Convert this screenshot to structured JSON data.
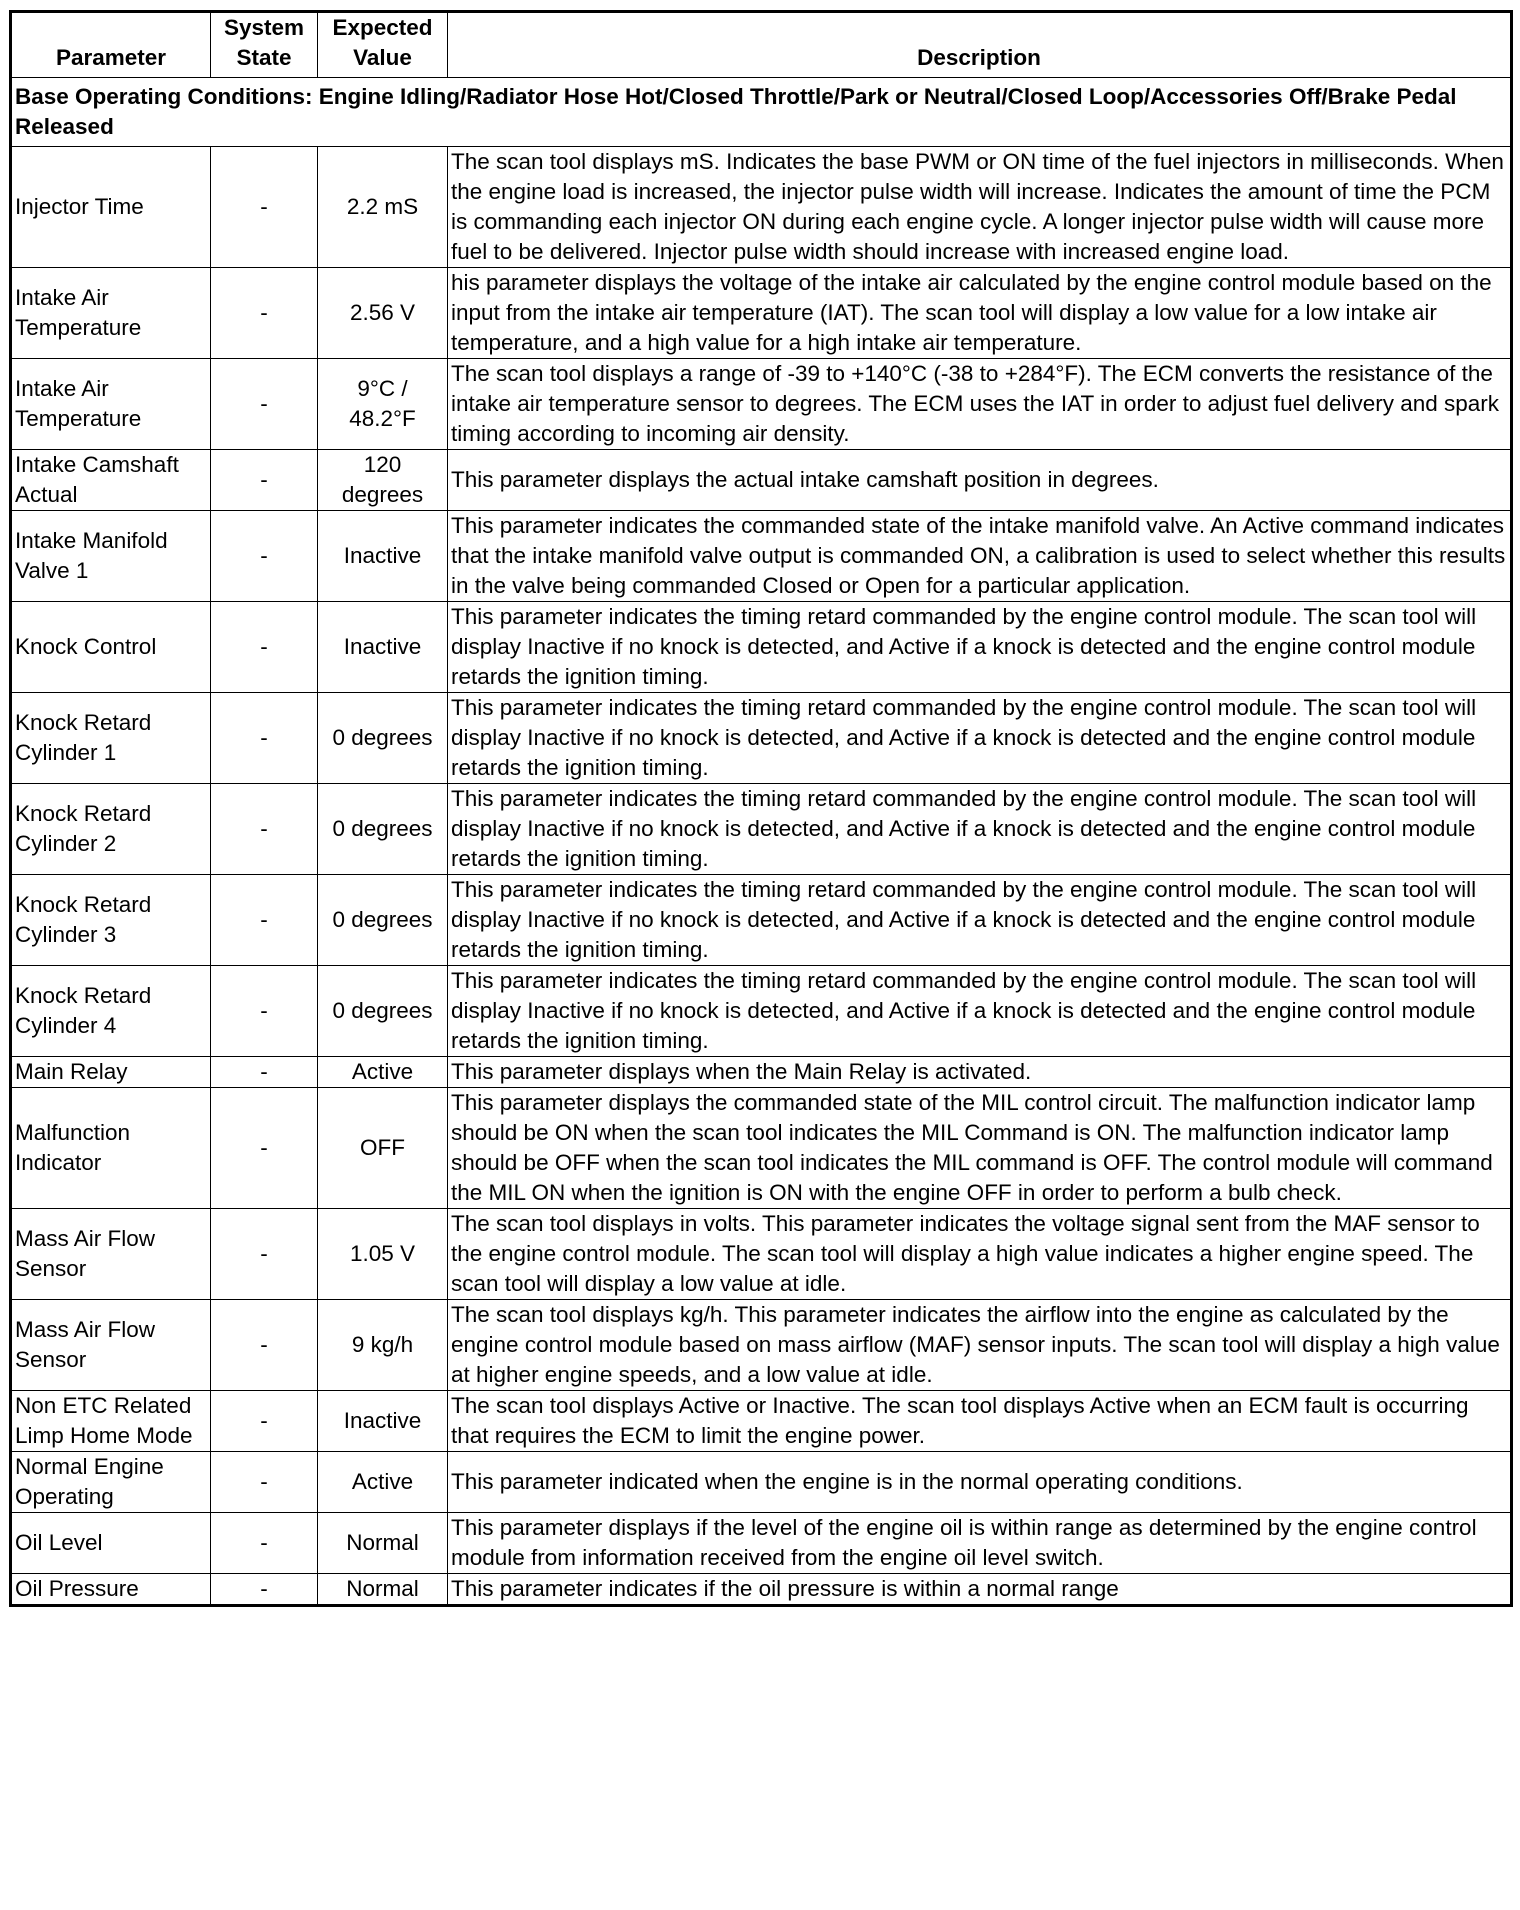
{
  "headers": {
    "parameter": "Parameter",
    "state": "System State",
    "value": "Expected Value",
    "description": "Description"
  },
  "conditions": "Base Operating Conditions: Engine Idling/Radiator Hose Hot/Closed Throttle/Park or Neutral/Closed Loop/Accessories Off/Brake Pedal Released",
  "rows": [
    {
      "parameter": "Injector Time",
      "state": "-",
      "value": "2.2 mS",
      "description": "The scan tool displays mS. Indicates the base PWM or ON time of the fuel injectors in milliseconds. When the engine load is increased, the injector pulse width will increase. Indicates the amount of time the PCM is commanding each injector ON during each engine cycle. A longer injector pulse width will cause more fuel to be delivered. Injector pulse width should increase with increased engine load."
    },
    {
      "parameter": "Intake Air Temperature",
      "state": "-",
      "value": "2.56 V",
      "description": "his parameter displays the voltage of the intake air calculated by the engine control module based on the input from the intake air temperature (IAT). The scan tool will display a low value for a low intake air temperature, and a high value for a high intake air temperature."
    },
    {
      "parameter": "Intake Air Temperature",
      "state": "-",
      "value": "9°C / 48.2°F",
      "description": "The scan tool displays a range of -39 to +140°C (-38 to +284°F). The ECM converts the resistance of the intake air temperature sensor to degrees. The ECM uses the IAT in order to adjust fuel delivery and spark timing according to incoming air density."
    },
    {
      "parameter": "Intake Camshaft Actual",
      "state": "-",
      "value": "120 degrees",
      "description": "This parameter displays the actual intake camshaft position in degrees."
    },
    {
      "parameter": "Intake Manifold Valve 1",
      "state": "-",
      "value": "Inactive",
      "description": "This parameter indicates the commanded state of the intake manifold valve. An Active command indicates that the intake manifold valve output is commanded ON, a calibration is used to select whether this results in the valve being commanded Closed or Open for a particular application."
    },
    {
      "parameter": "Knock Control",
      "state": "-",
      "value": "Inactive",
      "description": "This parameter indicates the timing retard commanded by the engine control module. The scan tool will display Inactive if no knock is detected, and Active if a knock is detected and the engine control module retards the ignition timing."
    },
    {
      "parameter": "Knock Retard Cylinder 1",
      "state": "-",
      "value": "0 degrees",
      "description": "This parameter indicates the timing retard commanded by the engine control module. The scan tool will display Inactive if no knock is detected, and Active if a knock is detected and the engine control module retards the ignition timing."
    },
    {
      "parameter": "Knock Retard Cylinder 2",
      "state": "-",
      "value": "0 degrees",
      "description": "This parameter indicates the timing retard commanded by the engine control module. The scan tool will display Inactive if no knock is detected, and Active if a knock is detected and the engine control module retards the ignition timing."
    },
    {
      "parameter": "Knock Retard Cylinder 3",
      "state": "-",
      "value": "0 degrees",
      "description": "This parameter indicates the timing retard commanded by the engine control module. The scan tool will display Inactive if no knock is detected, and Active if a knock is detected and the engine control module retards the ignition timing."
    },
    {
      "parameter": "Knock Retard Cylinder 4",
      "state": "-",
      "value": "0 degrees",
      "description": "This parameter indicates the timing retard commanded by the engine control module. The scan tool will display Inactive if no knock is detected, and Active if a knock is detected and the engine control module retards the ignition timing."
    },
    {
      "parameter": "Main Relay",
      "state": "-",
      "value": "Active",
      "description": "This parameter displays when the Main Relay is activated."
    },
    {
      "parameter": "Malfunction Indicator",
      "state": "-",
      "value": "OFF",
      "description": "This parameter displays the commanded state of the MIL control circuit. The malfunction indicator lamp should be ON when the scan tool indicates the MIL Command is ON. The malfunction indicator lamp should be OFF when the scan tool indicates the MIL command is OFF. The control module will command the MIL ON when the ignition is ON with the engine OFF in order to perform a bulb check."
    },
    {
      "parameter": "Mass Air Flow Sensor",
      "state": "-",
      "value": "1.05 V",
      "description": "The scan tool displays in volts. This parameter indicates the voltage signal sent from the MAF sensor to the engine control module. The scan tool will display a high value indicates a higher engine speed. The scan tool will display a low value at idle."
    },
    {
      "parameter": "Mass Air Flow Sensor",
      "state": "-",
      "value": "9 kg/h",
      "description": "The scan tool displays kg/h. This parameter indicates the airflow into the engine as calculated by the engine control module based on mass airflow (MAF) sensor inputs. The scan tool will display a high value at higher engine speeds, and a low value at idle."
    },
    {
      "parameter": "Non ETC Related Limp Home Mode",
      "state": "-",
      "value": "Inactive",
      "description": "The scan tool displays Active or Inactive. The scan tool displays Active when an ECM fault is occurring that requires the ECM to limit the engine power."
    },
    {
      "parameter": "Normal Engine Operating",
      "state": "-",
      "value": "Active",
      "description": "This parameter indicated when the engine is in the normal operating conditions."
    },
    {
      "parameter": "Oil Level",
      "state": "-",
      "value": "Normal",
      "description": "This parameter displays if the level of the engine oil is within range as determined by the engine control module from information received from the engine oil level switch."
    },
    {
      "parameter": "Oil Pressure",
      "state": "-",
      "value": "Normal",
      "description": "This parameter indicates if the oil pressure is within a normal range"
    }
  ]
}
